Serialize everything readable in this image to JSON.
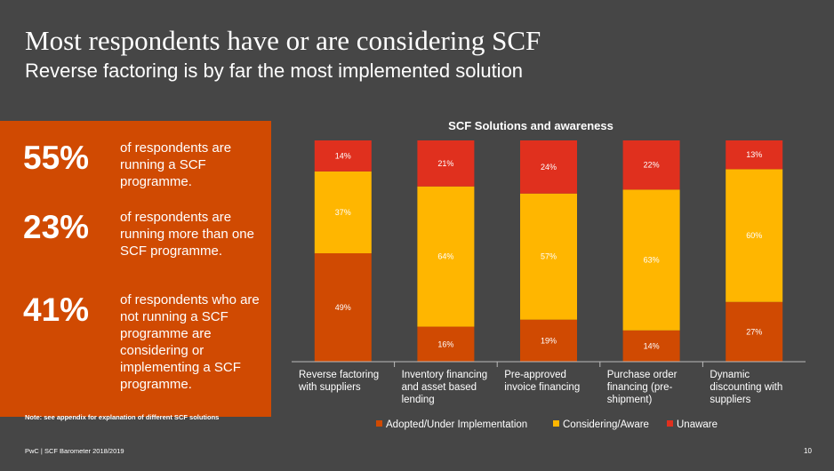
{
  "header": {
    "title": "Most respondents have or are considering SCF",
    "subtitle": "Reverse factoring is by far the most implemented solution"
  },
  "stats": [
    {
      "pct": "55%",
      "desc": "of respondents are running a SCF programme."
    },
    {
      "pct": "23%",
      "desc": "of respondents are running more than one SCF programme."
    },
    {
      "pct": "41%",
      "desc": "of respondents who are not running a SCF programme are considering or implementing a SCF programme."
    }
  ],
  "note": "Note: see appendix for explanation of different SCF solutions",
  "footer": "PwC | SCF Barometer 2018/2019",
  "page_number": "10",
  "colors": {
    "adopted": "#d04a02",
    "considering": "#ffb600",
    "unaware": "#e0301e"
  },
  "chart_data": {
    "type": "bar",
    "stacked": true,
    "title": "SCF Solutions and awareness",
    "categories": [
      [
        "Reverse factoring",
        "with suppliers"
      ],
      [
        "Inventory financing",
        "and asset based",
        "lending"
      ],
      [
        "Pre-approved",
        "invoice financing"
      ],
      [
        "Purchase order",
        "financing (pre-",
        "shipment)"
      ],
      [
        "Dynamic",
        "discounting with",
        "suppliers"
      ]
    ],
    "series": [
      {
        "name": "Adopted/Under Implementation",
        "values": [
          49,
          16,
          19,
          14,
          27
        ],
        "labels": [
          "49%",
          "16%",
          "19%",
          "14%",
          "27%"
        ]
      },
      {
        "name": "Considering/Aware",
        "values": [
          37,
          64,
          57,
          63,
          60
        ],
        "labels": [
          "37%",
          "64%",
          "57%",
          "63%",
          "60%"
        ]
      },
      {
        "name": "Unaware",
        "values": [
          14,
          21,
          24,
          22,
          13
        ],
        "labels": [
          "14%",
          "21%",
          "24%",
          "22%",
          "13%"
        ]
      }
    ],
    "ylim": [
      0,
      100
    ],
    "legend": "bottom",
    "grid": false
  }
}
